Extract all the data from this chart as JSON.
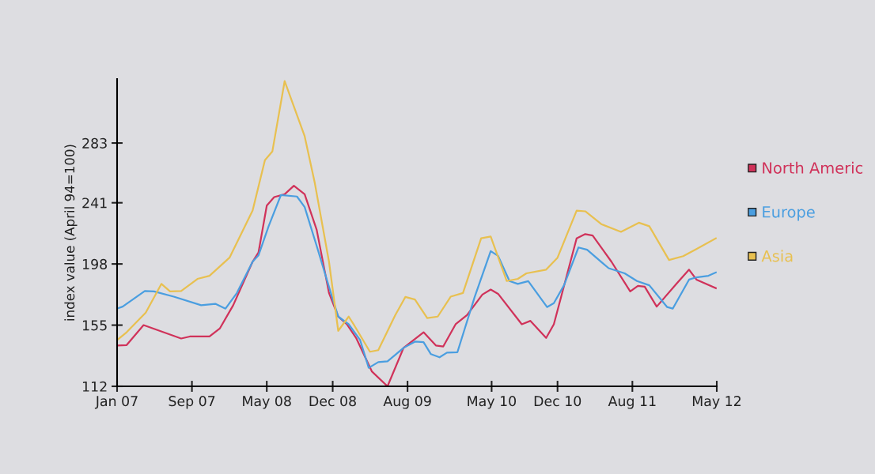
{
  "chart_data": {
    "type": "line",
    "ylabel": "index value (April 94=100)",
    "xlim": [
      "2007-01",
      "2012-05"
    ],
    "ylim": [
      112,
      328
    ],
    "xticks": [
      {
        "value": "2007-01",
        "label": "Jan 07"
      },
      {
        "value": "2007-09",
        "label": "Sep 07"
      },
      {
        "value": "2008-05",
        "label": "May 08"
      },
      {
        "value": "2008-12",
        "label": "Dec 08"
      },
      {
        "value": "2009-08",
        "label": "Aug 09"
      },
      {
        "value": "2010-05",
        "label": "May 10"
      },
      {
        "value": "2010-12",
        "label": "Dec 10"
      },
      {
        "value": "2011-08",
        "label": "Aug 11"
      },
      {
        "value": "2012-05",
        "label": "May 12"
      }
    ],
    "yticks": [
      112,
      155,
      198,
      241,
      283
    ],
    "grid": false,
    "legend": "right",
    "marker": "none",
    "line_style": "solid",
    "series": [
      {
        "name": "North Americ",
        "color": "#d0325a",
        "x": [
          "2007-01-01",
          "2007-02-01",
          "2007-03-28",
          "2007-07-28",
          "2007-08-25",
          "2007-10-28",
          "2007-12-01",
          "2008-01-13",
          "2008-03-16",
          "2008-04-04",
          "2008-05-01",
          "2008-05-25",
          "2008-06-28",
          "2008-07-28",
          "2008-09-01",
          "2008-10-10",
          "2008-11-19",
          "2008-12-19",
          "2009-01-16",
          "2009-02-16",
          "2009-04-07",
          "2009-05-28",
          "2009-07-19",
          "2009-09-22",
          "2009-11-01",
          "2009-11-25",
          "2010-01-04",
          "2010-02-10",
          "2010-04-01",
          "2010-04-28",
          "2010-05-22",
          "2010-08-07",
          "2010-09-04",
          "2010-10-25",
          "2010-11-19",
          "2011-02-01",
          "2011-03-01",
          "2011-03-25",
          "2011-05-25",
          "2011-07-25",
          "2011-08-19",
          "2011-09-10",
          "2011-10-19",
          "2011-12-22",
          "2012-02-01",
          "2012-02-25",
          "2012-04-28"
        ],
        "values": [
          140.7,
          141,
          155,
          145.6,
          147,
          147,
          152.8,
          169,
          199.6,
          206,
          239,
          245,
          247,
          253,
          247,
          222,
          177.6,
          161,
          155.6,
          145.6,
          122.5,
          112,
          139,
          150,
          140.7,
          140,
          155.6,
          162,
          176.5,
          180,
          177,
          155.6,
          158,
          146,
          155.6,
          216,
          219,
          218,
          199.6,
          178.7,
          182.6,
          182,
          168,
          184,
          194,
          187,
          181
        ]
      },
      {
        "name": "Europe",
        "color": "#4a9ee0",
        "x": [
          "2007-01-01",
          "2007-01-19",
          "2007-04-01",
          "2007-05-01",
          "2007-07-04",
          "2007-10-01",
          "2007-11-16",
          "2007-12-19",
          "2008-01-25",
          "2008-03-16",
          "2008-04-04",
          "2008-05-07",
          "2008-06-16",
          "2008-08-07",
          "2008-09-01",
          "2008-10-10",
          "2008-11-25",
          "2008-12-19",
          "2009-01-22",
          "2009-02-28",
          "2009-03-28",
          "2009-04-28",
          "2009-05-28",
          "2009-07-19",
          "2009-08-25",
          "2009-09-22",
          "2009-10-16",
          "2009-11-13",
          "2009-12-07",
          "2010-01-10",
          "2010-03-07",
          "2010-04-28",
          "2010-05-22",
          "2010-06-28",
          "2010-07-25",
          "2010-08-28",
          "2010-10-28",
          "2010-11-19",
          "2010-12-22",
          "2011-02-07",
          "2011-03-07",
          "2011-05-16",
          "2011-07-07",
          "2011-08-16",
          "2011-09-25",
          "2011-11-22",
          "2011-12-10",
          "2012-02-01",
          "2012-02-25",
          "2012-04-04",
          "2012-04-28"
        ],
        "values": [
          166.6,
          168,
          179,
          178.7,
          175,
          169,
          170,
          166.6,
          177.6,
          199.6,
          204,
          224.5,
          246.5,
          245.4,
          238,
          210.7,
          177.6,
          161,
          155.6,
          144.5,
          125,
          129,
          129.6,
          139,
          143.4,
          143,
          134.6,
          132.4,
          135.7,
          136,
          174.8,
          207,
          203.7,
          186,
          184,
          185.9,
          167.7,
          170.4,
          183,
          209.6,
          208,
          195,
          191.4,
          186,
          183,
          167.7,
          166.6,
          187,
          188.6,
          189.7,
          192
        ]
      },
      {
        "name": "Asia",
        "color": "#e8c050",
        "x": [
          "2007-01-01",
          "2007-02-01",
          "2007-04-04",
          "2007-05-25",
          "2007-06-22",
          "2007-07-28",
          "2007-09-19",
          "2007-10-28",
          "2008-01-01",
          "2008-03-16",
          "2008-04-25",
          "2008-05-19",
          "2008-06-28",
          "2008-09-01",
          "2008-10-04",
          "2008-11-19",
          "2008-12-19",
          "2009-01-22",
          "2009-02-10",
          "2009-04-01",
          "2009-04-28",
          "2009-06-22",
          "2009-07-25",
          "2009-08-25",
          "2009-10-04",
          "2009-11-07",
          "2009-12-19",
          "2010-01-28",
          "2010-03-28",
          "2010-04-28",
          "2010-06-19",
          "2010-07-25",
          "2010-08-22",
          "2010-10-25",
          "2010-12-01",
          "2011-02-01",
          "2011-03-01",
          "2011-04-22",
          "2011-06-25",
          "2011-08-22",
          "2011-09-25",
          "2011-11-28",
          "2012-01-13",
          "2012-02-25",
          "2012-04-28"
        ],
        "values": [
          144.5,
          150,
          163.8,
          184,
          178.7,
          179,
          187.5,
          189.7,
          202.4,
          235.5,
          271,
          277,
          326.5,
          287.8,
          254.8,
          199.6,
          151,
          161,
          154.5,
          136.3,
          137.4,
          162,
          174.8,
          173,
          160,
          161,
          175,
          177.6,
          216,
          217.3,
          186,
          187.5,
          191.4,
          194,
          202.4,
          235.5,
          235,
          226,
          220.6,
          227,
          224.5,
          200.8,
          203.5,
          208.5,
          216
        ]
      }
    ]
  }
}
